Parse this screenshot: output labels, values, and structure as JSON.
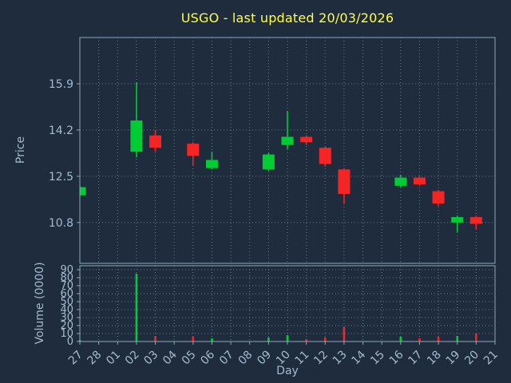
{
  "colors": {
    "background": "#1f2c3d",
    "title": "#ffff40",
    "tick_label": "#a4bad0",
    "axis_label": "#a4bad0",
    "grid": "#8496a8",
    "spine": "#8fa6ba",
    "up": "#00cc33",
    "down": "#f42525"
  },
  "chart_data": {
    "type": "candlestick",
    "title": "USGO - last updated 20/03/2026",
    "xlabel": "Day",
    "price_axis_label": "Price",
    "volume_axis_label": "Volume (0000)",
    "x_ticks": [
      "27",
      "28",
      "01",
      "02",
      "03",
      "04",
      "05",
      "06",
      "07",
      "08",
      "09",
      "10",
      "11",
      "12",
      "13",
      "14",
      "15",
      "16",
      "17",
      "18",
      "19",
      "20",
      "21"
    ],
    "price_ticks": [
      15.9,
      14.2,
      12.5,
      10.8
    ],
    "price_ylim": [
      9.3,
      17.6
    ],
    "volume_ticks": [
      90,
      80,
      70,
      60,
      50,
      40,
      30,
      20,
      10,
      0
    ],
    "volume_ylim": [
      0,
      95
    ],
    "grid": "dotted",
    "candles": [
      {
        "day": "27",
        "open": 11.8,
        "high": 12.15,
        "low": 11.75,
        "close": 12.1,
        "volume": 2
      },
      {
        "day": "02",
        "open": 13.4,
        "high": 15.95,
        "low": 13.2,
        "close": 14.55,
        "volume": 85
      },
      {
        "day": "03",
        "open": 14.0,
        "high": 14.2,
        "low": 13.4,
        "close": 13.55,
        "volume": 7
      },
      {
        "day": "05",
        "open": 13.7,
        "high": 13.75,
        "low": 12.9,
        "close": 13.25,
        "volume": 6
      },
      {
        "day": "06",
        "open": 12.8,
        "high": 13.4,
        "low": 12.75,
        "close": 13.1,
        "volume": 4
      },
      {
        "day": "09",
        "open": 12.75,
        "high": 13.35,
        "low": 12.7,
        "close": 13.3,
        "volume": 5
      },
      {
        "day": "10",
        "open": 13.65,
        "high": 14.9,
        "low": 13.5,
        "close": 13.95,
        "volume": 8
      },
      {
        "day": "11",
        "open": 13.95,
        "high": 14.0,
        "low": 13.65,
        "close": 13.75,
        "volume": 3
      },
      {
        "day": "12",
        "open": 13.55,
        "high": 13.6,
        "low": 12.85,
        "close": 12.95,
        "volume": 5
      },
      {
        "day": "13",
        "open": 12.75,
        "high": 12.8,
        "low": 11.5,
        "close": 11.85,
        "volume": 18
      },
      {
        "day": "16",
        "open": 12.15,
        "high": 12.55,
        "low": 12.1,
        "close": 12.45,
        "volume": 6
      },
      {
        "day": "17",
        "open": 12.45,
        "high": 12.5,
        "low": 12.15,
        "close": 12.2,
        "volume": 4
      },
      {
        "day": "18",
        "open": 11.95,
        "high": 12.0,
        "low": 11.4,
        "close": 11.5,
        "volume": 6
      },
      {
        "day": "19",
        "open": 10.8,
        "high": 11.05,
        "low": 10.45,
        "close": 11.0,
        "volume": 7
      },
      {
        "day": "20",
        "open": 11.0,
        "high": 11.05,
        "low": 10.55,
        "close": 10.75,
        "volume": 10
      }
    ]
  }
}
